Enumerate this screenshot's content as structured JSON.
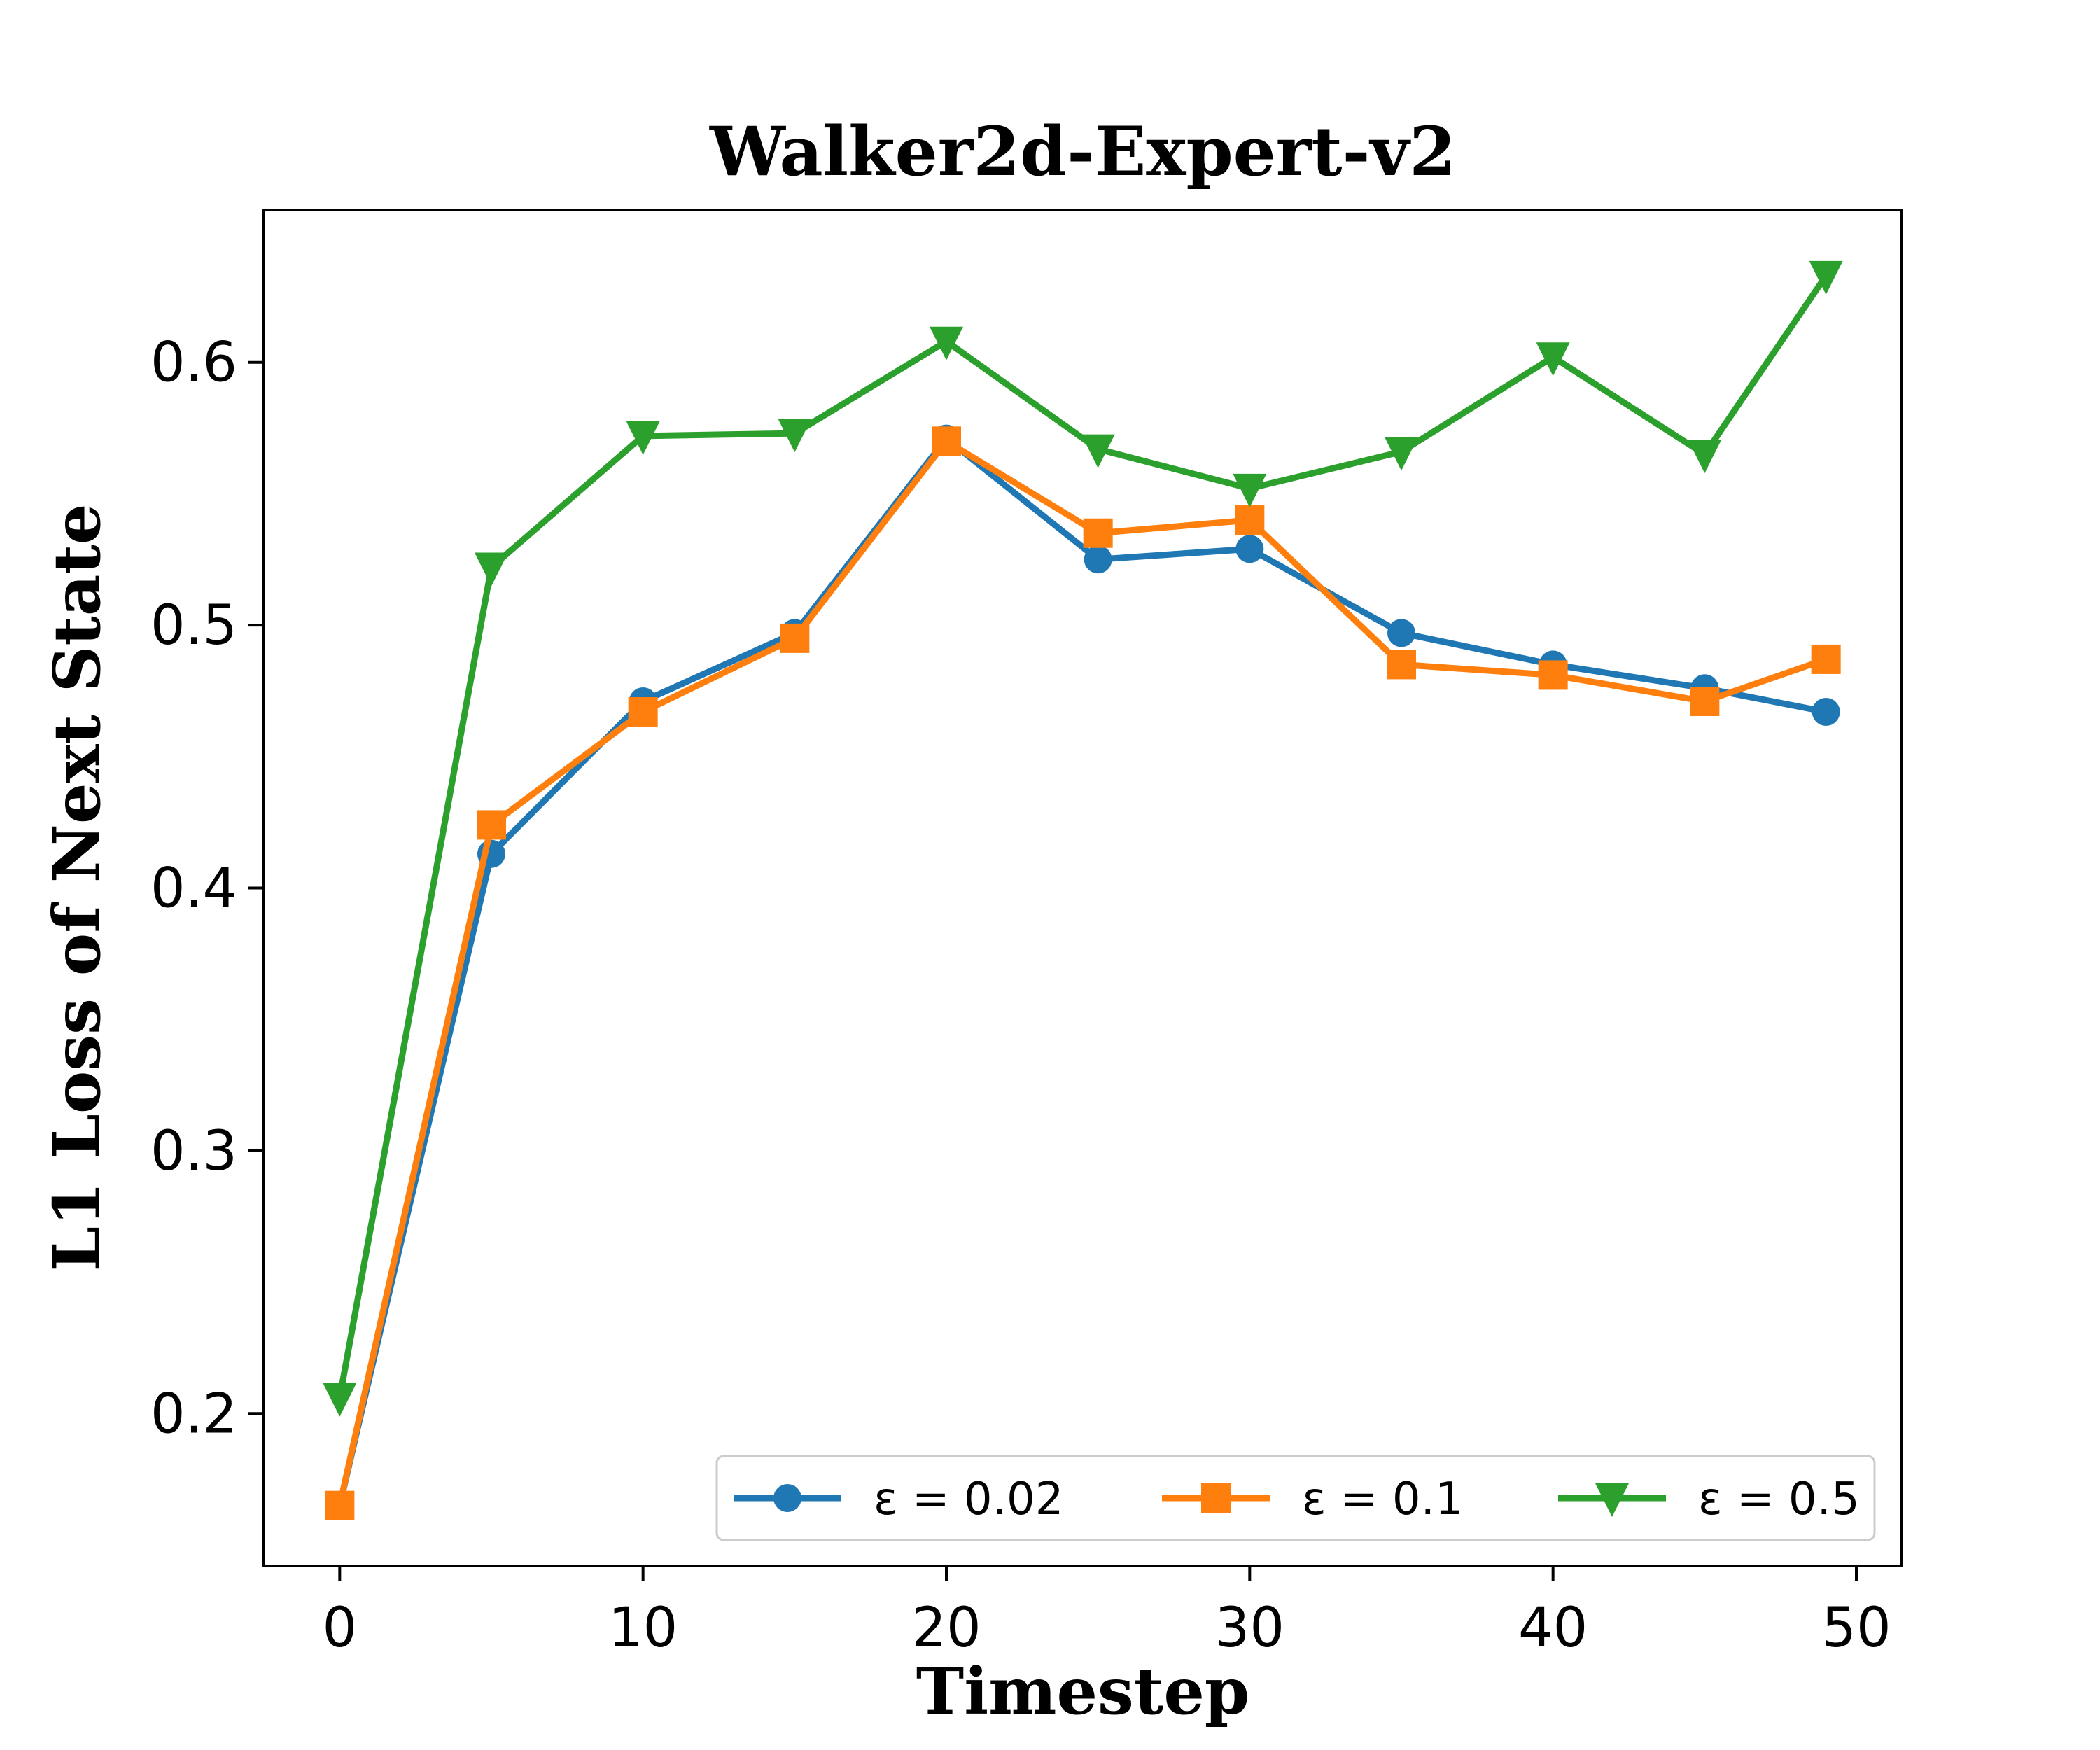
{
  "chart_data": {
    "type": "line",
    "title": "Walker2d-Expert-v2",
    "xlabel": "Timestep",
    "ylabel": "L1 Loss of Next State",
    "xlim": [
      -2.5,
      51.5
    ],
    "ylim": [
      0.142,
      0.658
    ],
    "xticks": [
      0,
      10,
      20,
      30,
      40,
      50
    ],
    "xtick_labels": [
      "0",
      "10",
      "20",
      "30",
      "40",
      "50"
    ],
    "yticks": [
      0.2,
      0.3,
      0.4,
      0.5,
      0.6
    ],
    "ytick_labels": [
      "0.2",
      "0.3",
      "0.4",
      "0.5",
      "0.6"
    ],
    "grid": false,
    "legend_position": "lower-right",
    "x": [
      0,
      5,
      10,
      15,
      20,
      25,
      30,
      35,
      40,
      45,
      49
    ],
    "series": [
      {
        "name": "ε = 0.02",
        "color": "#1f77b4",
        "marker": "circle",
        "values": [
          0.165,
          0.413,
          0.471,
          0.497,
          0.571,
          0.525,
          0.529,
          0.497,
          0.485,
          0.476,
          0.467
        ]
      },
      {
        "name": "ε = 0.1",
        "color": "#ff7f0e",
        "marker": "square",
        "values": [
          0.165,
          0.424,
          0.467,
          0.495,
          0.57,
          0.535,
          0.54,
          0.485,
          0.481,
          0.471,
          0.487
        ]
      },
      {
        "name": "ε = 0.5",
        "color": "#2ca02c",
        "marker": "triangle-down",
        "values": [
          0.206,
          0.522,
          0.572,
          0.573,
          0.608,
          0.567,
          0.552,
          0.566,
          0.602,
          0.565,
          0.633
        ]
      }
    ]
  }
}
